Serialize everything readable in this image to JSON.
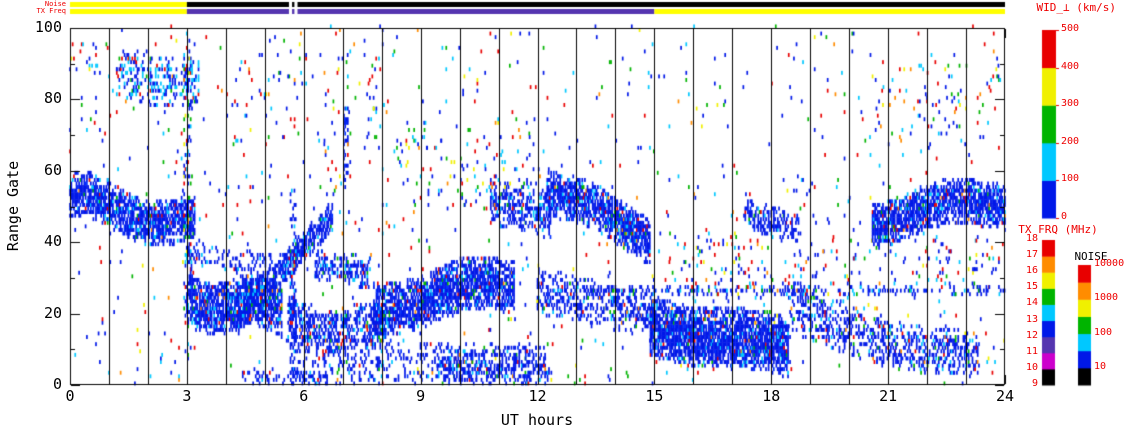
{
  "axes": {
    "xlabel": "UT hours",
    "ylabel": "Range Gate",
    "x_ticks": [
      0,
      3,
      6,
      9,
      12,
      15,
      18,
      21,
      24
    ],
    "y_ticks": [
      0,
      20,
      40,
      60,
      80,
      100
    ],
    "xlim": [
      0,
      24
    ],
    "ylim": [
      0,
      100
    ]
  },
  "strips": {
    "noise_label": "Noise",
    "txfreq_label": "TX Freq",
    "noise_segments": [
      {
        "t0": 0,
        "t1": 3,
        "color": "#ffff00"
      },
      {
        "t0": 3,
        "t1": 5.62,
        "color": "#000000"
      },
      {
        "t0": 5.7,
        "t1": 5.76,
        "color": "#000000"
      },
      {
        "t0": 5.84,
        "t1": 24,
        "color": "#000000"
      }
    ],
    "txfreq_segments": [
      {
        "t0": 0,
        "t1": 3,
        "color": "#ffff00"
      },
      {
        "t0": 3,
        "t1": 5.62,
        "color": "#5535b0"
      },
      {
        "t0": 5.7,
        "t1": 5.76,
        "color": "#5535b0"
      },
      {
        "t0": 5.84,
        "t1": 15,
        "color": "#5535b0"
      },
      {
        "t0": 15,
        "t1": 24,
        "color": "#ffff00"
      }
    ]
  },
  "legends": {
    "wid": {
      "title": "WID_⊥ (km/s)",
      "ticks": [
        0,
        100,
        200,
        300,
        400,
        500
      ],
      "segments": [
        {
          "v0": 0,
          "v1": 100,
          "color": "#0018e8"
        },
        {
          "v0": 100,
          "v1": 200,
          "color": "#00c8ff"
        },
        {
          "v0": 200,
          "v1": 300,
          "color": "#00b400"
        },
        {
          "v0": 300,
          "v1": 400,
          "color": "#f0f000"
        },
        {
          "v0": 400,
          "v1": 500,
          "color": "#e80000"
        }
      ]
    },
    "txfrq": {
      "title": "TX FRQ (MHz)",
      "ticks": [
        9,
        10,
        11,
        12,
        13,
        14,
        15,
        16,
        17,
        18
      ],
      "colors": [
        "#000000",
        "#cc00cc",
        "#5535b0",
        "#0018e8",
        "#00c8ff",
        "#00b400",
        "#f0f000",
        "#ff8c00",
        "#e80000"
      ]
    },
    "noise": {
      "title": "NOISE",
      "ticks": [
        "10",
        "100",
        "1000",
        "10000"
      ],
      "colors": [
        "#000000",
        "#0018e8",
        "#00c8ff",
        "#00b400",
        "#f0f000",
        "#ff8c00",
        "#e80000"
      ]
    }
  },
  "chart_data": {
    "type": "heatmap",
    "xlabel": "UT hours",
    "ylabel": "Range Gate",
    "xlim": [
      0,
      24
    ],
    "ylim": [
      0,
      100
    ],
    "grid": "vertical black line every 1 hour",
    "time_step_hours": 0.0333,
    "value_encoding": "spectral width WID_perp (km/s) mapped to color; dominant backscatter is low width (blue, 0-100 km/s) with sparse cyan/green/red points",
    "palettes": {
      "dense": {
        "#0018e8": 0.8,
        "#0030ff": 0.06,
        "#00c8ff": 0.08,
        "#00b400": 0.02,
        "#e80000": 0.03,
        "#ff8c00": 0.01
      },
      "sparse": {
        "#0018e8": 0.42,
        "#00c8ff": 0.17,
        "#00b400": 0.12,
        "#e80000": 0.18,
        "#ff8c00": 0.05,
        "#f0f000": 0.06
      },
      "cyanish": {
        "#0018e8": 0.5,
        "#00c8ff": 0.35,
        "#00b400": 0.06,
        "#e80000": 0.09
      }
    },
    "background_scatter": {
      "density": 0.013,
      "palette": "sparse"
    },
    "features": [
      {
        "name": "band-00-03",
        "t0": 0.0,
        "t1": 3.2,
        "g0": 52,
        "g1": 44,
        "hw": 6,
        "density": 0.8,
        "wiggle": [
          2,
          2.2,
          0.5
        ]
      },
      {
        "name": "speckle-topleft",
        "t0": 0.0,
        "t1": 0.7,
        "g0": 91,
        "g1": 91,
        "hw": 6,
        "density": 0.1,
        "palette": "sparse"
      },
      {
        "name": "highgate-blob-early",
        "t0": 1.2,
        "t1": 3.3,
        "g0": 87,
        "g1": 83,
        "hw": 7,
        "density": 0.28,
        "palette": "cyanish"
      },
      {
        "name": "column-03",
        "t0": 2.93,
        "t1": 3.12,
        "g0": 52,
        "g1": 52,
        "hw": 48,
        "density": 0.22,
        "palette": "sparse"
      },
      {
        "name": "block-03-05",
        "t0": 3.0,
        "t1": 5.45,
        "g0": 23,
        "g1": 21,
        "hw": 7,
        "density": 0.82,
        "wiggle": [
          1.5,
          3,
          0
        ]
      },
      {
        "name": "above-block",
        "t0": 3.05,
        "t1": 5.2,
        "g0": 36,
        "g1": 33,
        "hw": 4,
        "density": 0.22
      },
      {
        "name": "rising-band-04-07",
        "t0": 4.3,
        "t1": 6.75,
        "g0": 19,
        "g1": 47,
        "hw": 4,
        "density": 0.7
      },
      {
        "name": "low-band-06-08",
        "t0": 5.6,
        "t1": 8.1,
        "g0": 17,
        "g1": 14,
        "hw": 6,
        "density": 0.55,
        "wiggle": [
          2,
          2.5,
          1
        ]
      },
      {
        "name": "blob-08-11",
        "t0": 7.8,
        "t1": 11.4,
        "g0": 22,
        "g1": 28,
        "hw": 7,
        "density": 0.78,
        "wiggle": [
          2,
          1.8,
          2
        ]
      },
      {
        "name": "bottom-06-12",
        "t0": 5.7,
        "t1": 12.3,
        "g0": 6,
        "g1": 5,
        "hw": 6,
        "density": 0.16
      },
      {
        "name": "bottom-09-12",
        "t0": 9.3,
        "t1": 12.2,
        "g0": 6,
        "g1": 5,
        "hw": 5,
        "density": 0.4
      },
      {
        "name": "mid-blob-06-08",
        "t0": 6.3,
        "t1": 7.7,
        "g0": 33,
        "g1": 31,
        "hw": 4,
        "density": 0.45
      },
      {
        "name": "blob-11-12",
        "t0": 10.8,
        "t1": 12.35,
        "g0": 51,
        "g1": 47,
        "hw": 6,
        "density": 0.5
      },
      {
        "name": "band-12-15",
        "t0": 12.25,
        "t1": 14.9,
        "g0": 54,
        "g1": 41,
        "hw": 6,
        "density": 0.8,
        "wiggle": [
          1.5,
          2,
          0
        ]
      },
      {
        "name": "low-band-12-15",
        "t0": 12.0,
        "t1": 15.0,
        "g0": 26,
        "g1": 19,
        "hw": 6,
        "density": 0.38
      },
      {
        "name": "big-blob-15-18",
        "t0": 14.9,
        "t1": 18.45,
        "g0": 17,
        "g1": 9,
        "hw": 8,
        "density": 0.85,
        "wiggle": [
          1.5,
          1.5,
          0
        ]
      },
      {
        "name": "mid-blob-17-19",
        "t0": 17.3,
        "t1": 18.7,
        "g0": 47,
        "g1": 44,
        "hw": 4,
        "density": 0.5
      },
      {
        "name": "band-18-21",
        "t0": 18.45,
        "t1": 21.0,
        "g0": 22,
        "g1": 11,
        "hw": 7,
        "density": 0.33
      },
      {
        "name": "band-21-24",
        "t0": 20.6,
        "t1": 24.0,
        "g0": 46,
        "g1": 51,
        "hw": 6,
        "density": 0.78,
        "wiggle": [
          2,
          1.7,
          1
        ]
      },
      {
        "name": "low-blob-21-23",
        "t0": 21.0,
        "t1": 23.35,
        "g0": 11,
        "g1": 8,
        "hw": 6,
        "density": 0.42
      },
      {
        "name": "gate26-line",
        "t0": 12.5,
        "t1": 24.0,
        "g0": 26,
        "g1": 26,
        "hw": 1,
        "density": 0.3
      },
      {
        "name": "column-5p7",
        "t0": 5.66,
        "t1": 5.8,
        "g0": 27,
        "g1": 27,
        "hw": 27,
        "density": 0.5
      },
      {
        "name": "column-7p1",
        "t0": 7.03,
        "t1": 7.16,
        "g0": 66,
        "g1": 66,
        "hw": 11,
        "density": 0.5
      },
      {
        "name": "scatter-mid-09-12",
        "t0": 8.4,
        "t1": 12.1,
        "g0": 62,
        "g1": 58,
        "hw": 11,
        "density": 0.05,
        "palette": "sparse"
      },
      {
        "name": "scatter-mid-16-21",
        "t0": 15.4,
        "t1": 21.2,
        "g0": 34,
        "g1": 30,
        "hw": 10,
        "density": 0.05,
        "palette": "sparse"
      },
      {
        "name": "scatter-high-right",
        "t0": 20.5,
        "t1": 24.0,
        "g0": 80,
        "g1": 80,
        "hw": 12,
        "density": 0.03,
        "palette": "sparse"
      },
      {
        "name": "scatter-high-04-08",
        "t0": 4.0,
        "t1": 8.0,
        "g0": 80,
        "g1": 80,
        "hw": 14,
        "density": 0.025,
        "palette": "sparse"
      },
      {
        "name": "bottomleft-04-07",
        "t0": 4.4,
        "t1": 6.6,
        "g0": 2,
        "g1": 1,
        "hw": 2,
        "density": 0.3
      },
      {
        "name": "scatter-right-30s",
        "t0": 21.3,
        "t1": 23.8,
        "g0": 33,
        "g1": 33,
        "hw": 8,
        "density": 0.05,
        "palette": "sparse"
      }
    ]
  }
}
